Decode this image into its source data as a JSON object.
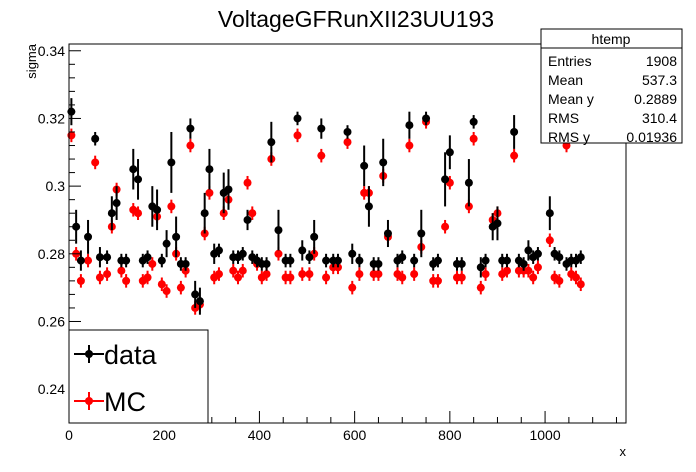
{
  "chart_data": {
    "type": "scatter",
    "title": "VoltageGFRunXII23UU193",
    "xlabel": "x",
    "ylabel": "sigma",
    "xlim": [
      0,
      1170
    ],
    "ylim": [
      0.23,
      0.342
    ],
    "x_ticks": [
      0,
      200,
      400,
      600,
      800,
      1000
    ],
    "x_tick_labels": [
      "0",
      "200",
      "400",
      "600",
      "800",
      "1000"
    ],
    "y_ticks": [
      0.24,
      0.26,
      0.28,
      0.3,
      0.32,
      0.34
    ],
    "y_tick_labels": [
      "0.24",
      "0.26",
      "0.28",
      "0.3",
      "0.32",
      "0.34"
    ],
    "grid": false,
    "legend": {
      "position": "bottom-left",
      "entries": [
        "data",
        "MC"
      ]
    },
    "stats_box": {
      "title": "htemp",
      "rows": [
        {
          "label": "Entries",
          "value": "1908"
        },
        {
          "label": "Mean",
          "value": "537.3"
        },
        {
          "label": "Mean y",
          "value": "0.2889"
        },
        {
          "label": "RMS",
          "value": "310.4"
        },
        {
          "label": "RMS y",
          "value": "0.01936"
        }
      ]
    },
    "series": [
      {
        "name": "data",
        "color": "#000000",
        "x": [
          5,
          15,
          25,
          40,
          55,
          65,
          80,
          90,
          100,
          110,
          120,
          135,
          145,
          155,
          165,
          175,
          185,
          195,
          205,
          215,
          225,
          235,
          245,
          255,
          265,
          275,
          285,
          295,
          305,
          315,
          325,
          335,
          345,
          355,
          365,
          375,
          385,
          395,
          405,
          415,
          425,
          440,
          455,
          465,
          480,
          490,
          505,
          515,
          530,
          540,
          555,
          565,
          585,
          595,
          610,
          620,
          630,
          640,
          650,
          660,
          670,
          690,
          700,
          715,
          725,
          740,
          750,
          765,
          775,
          790,
          800,
          815,
          825,
          840,
          850,
          865,
          875,
          890,
          900,
          910,
          920,
          935,
          945,
          955,
          965,
          975,
          985,
          1000,
          1010,
          1020,
          1030,
          1045,
          1055,
          1065,
          1075
        ],
        "y": [
          0.322,
          0.288,
          0.278,
          0.285,
          0.314,
          0.279,
          0.279,
          0.292,
          0.295,
          0.278,
          0.278,
          0.305,
          0.302,
          0.278,
          0.279,
          0.294,
          0.293,
          0.278,
          0.283,
          0.307,
          0.285,
          0.277,
          0.277,
          0.317,
          0.268,
          0.266,
          0.292,
          0.305,
          0.28,
          0.281,
          0.298,
          0.299,
          0.279,
          0.279,
          0.28,
          0.29,
          0.279,
          0.278,
          0.277,
          0.277,
          0.313,
          0.287,
          0.278,
          0.278,
          0.32,
          0.281,
          0.279,
          0.285,
          0.317,
          0.278,
          0.278,
          0.278,
          0.316,
          0.28,
          0.278,
          0.306,
          0.294,
          0.277,
          0.277,
          0.307,
          0.286,
          0.278,
          0.279,
          0.318,
          0.278,
          0.286,
          0.32,
          0.277,
          0.278,
          0.302,
          0.31,
          0.277,
          0.277,
          0.301,
          0.319,
          0.276,
          0.278,
          0.288,
          0.289,
          0.278,
          0.278,
          0.316,
          0.278,
          0.277,
          0.281,
          0.279,
          0.28,
          0.321,
          0.292,
          0.28,
          0.279,
          0.277,
          0.278,
          0.278,
          0.279
        ],
        "yerr": [
          0.004,
          0.005,
          0.003,
          0.005,
          0.002,
          0.003,
          0.002,
          0.005,
          0.005,
          0.002,
          0.002,
          0.006,
          0.006,
          0.002,
          0.002,
          0.006,
          0.006,
          0.002,
          0.004,
          0.009,
          0.006,
          0.002,
          0.002,
          0.003,
          0.004,
          0.004,
          0.006,
          0.006,
          0.003,
          0.002,
          0.006,
          0.006,
          0.002,
          0.002,
          0.002,
          0.003,
          0.002,
          0.002,
          0.002,
          0.002,
          0.006,
          0.006,
          0.002,
          0.002,
          0.002,
          0.003,
          0.002,
          0.005,
          0.003,
          0.002,
          0.002,
          0.002,
          0.002,
          0.003,
          0.002,
          0.006,
          0.006,
          0.002,
          0.002,
          0.007,
          0.004,
          0.002,
          0.002,
          0.004,
          0.002,
          0.007,
          0.002,
          0.002,
          0.002,
          0.008,
          0.005,
          0.002,
          0.002,
          0.007,
          0.002,
          0.003,
          0.002,
          0.004,
          0.005,
          0.002,
          0.002,
          0.005,
          0.002,
          0.002,
          0.003,
          0.002,
          0.002,
          0.002,
          0.005,
          0.002,
          0.002,
          0.002,
          0.002,
          0.002,
          0.002
        ]
      },
      {
        "name": "MC",
        "color": "#ff0000",
        "x": [
          5,
          15,
          25,
          40,
          55,
          65,
          80,
          90,
          100,
          110,
          120,
          135,
          145,
          155,
          165,
          175,
          185,
          195,
          205,
          215,
          225,
          235,
          245,
          255,
          265,
          275,
          285,
          295,
          305,
          315,
          325,
          335,
          345,
          355,
          365,
          375,
          385,
          395,
          405,
          415,
          425,
          440,
          455,
          465,
          480,
          490,
          505,
          515,
          530,
          540,
          555,
          565,
          585,
          595,
          610,
          620,
          630,
          640,
          650,
          660,
          670,
          690,
          700,
          715,
          725,
          740,
          750,
          765,
          775,
          790,
          800,
          815,
          825,
          840,
          850,
          865,
          875,
          890,
          900,
          910,
          920,
          935,
          945,
          955,
          965,
          975,
          985,
          1000,
          1010,
          1020,
          1030,
          1045,
          1055,
          1065,
          1075
        ],
        "y": [
          0.315,
          0.28,
          0.272,
          0.278,
          0.307,
          0.273,
          0.274,
          0.288,
          0.299,
          0.275,
          0.272,
          0.293,
          0.292,
          0.272,
          0.273,
          0.277,
          0.291,
          0.271,
          0.269,
          0.294,
          0.28,
          0.27,
          0.275,
          0.312,
          0.264,
          0.265,
          0.286,
          0.298,
          0.273,
          0.274,
          0.292,
          0.296,
          0.275,
          0.273,
          0.275,
          0.301,
          0.292,
          0.277,
          0.273,
          0.274,
          0.308,
          0.28,
          0.273,
          0.273,
          0.315,
          0.274,
          0.274,
          0.28,
          0.309,
          0.273,
          0.276,
          0.276,
          0.313,
          0.27,
          0.274,
          0.298,
          0.298,
          0.274,
          0.274,
          0.303,
          0.285,
          0.274,
          0.273,
          0.312,
          0.274,
          0.282,
          0.319,
          0.272,
          0.272,
          0.288,
          0.301,
          0.273,
          0.273,
          0.294,
          0.314,
          0.27,
          0.274,
          0.29,
          0.292,
          0.274,
          0.275,
          0.309,
          0.275,
          0.275,
          0.275,
          0.273,
          0.276,
          0.315,
          0.284,
          0.273,
          0.272,
          0.312,
          0.274,
          0.273,
          0.271
        ],
        "yerr": [
          0.002,
          0.002,
          0.002,
          0.002,
          0.002,
          0.002,
          0.002,
          0.002,
          0.002,
          0.002,
          0.002,
          0.002,
          0.002,
          0.002,
          0.002,
          0.002,
          0.002,
          0.002,
          0.002,
          0.002,
          0.002,
          0.002,
          0.002,
          0.002,
          0.002,
          0.002,
          0.002,
          0.002,
          0.002,
          0.002,
          0.002,
          0.002,
          0.002,
          0.002,
          0.002,
          0.002,
          0.002,
          0.002,
          0.002,
          0.002,
          0.002,
          0.002,
          0.002,
          0.002,
          0.002,
          0.002,
          0.002,
          0.002,
          0.002,
          0.002,
          0.002,
          0.002,
          0.002,
          0.002,
          0.002,
          0.002,
          0.002,
          0.002,
          0.002,
          0.002,
          0.002,
          0.002,
          0.002,
          0.002,
          0.002,
          0.002,
          0.002,
          0.002,
          0.002,
          0.002,
          0.002,
          0.002,
          0.002,
          0.002,
          0.002,
          0.002,
          0.002,
          0.002,
          0.002,
          0.002,
          0.002,
          0.002,
          0.002,
          0.002,
          0.002,
          0.002,
          0.002,
          0.002,
          0.002,
          0.002,
          0.002,
          0.002,
          0.002,
          0.002,
          0.002
        ]
      }
    ]
  }
}
